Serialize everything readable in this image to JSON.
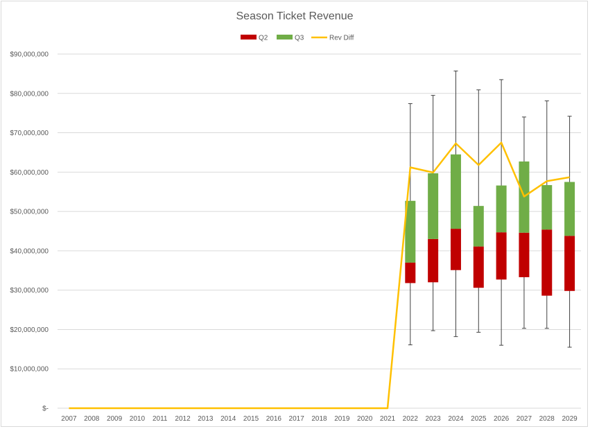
{
  "chart_data": {
    "type": "bar",
    "subtype": "stacked box plot (Q1 transparent base, Q2/Q3 stacked boxes, whiskers, line overlay)",
    "title": "Season Ticket Revenue",
    "xlabel": "",
    "ylabel": "",
    "ylim": [
      0,
      90000000
    ],
    "yticks": [
      0,
      10000000,
      20000000,
      30000000,
      40000000,
      50000000,
      60000000,
      70000000,
      80000000,
      90000000
    ],
    "ytick_labels": [
      "$-",
      "$10,000,000",
      "$20,000,000",
      "$30,000,000",
      "$40,000,000",
      "$50,000,000",
      "$60,000,000",
      "$70,000,000",
      "$80,000,000",
      "$90,000,000"
    ],
    "grid": true,
    "legend_position": "top",
    "categories": [
      "2007",
      "2008",
      "2009",
      "2010",
      "2011",
      "2012",
      "2013",
      "2014",
      "2015",
      "2016",
      "2017",
      "2018",
      "2019",
      "2020",
      "2021",
      "2022",
      "2023",
      "2024",
      "2025",
      "2026",
      "2027",
      "2028",
      "2029"
    ],
    "series": [
      {
        "name": "Q2",
        "color": "#c00000",
        "values": [
          null,
          null,
          null,
          null,
          null,
          null,
          null,
          null,
          null,
          null,
          null,
          null,
          null,
          null,
          null,
          5200000,
          11000000,
          10500000,
          10500000,
          12000000,
          11300000,
          16800000,
          14000000
        ]
      },
      {
        "name": "Q3",
        "color": "#70ad47",
        "values": [
          null,
          null,
          null,
          null,
          null,
          null,
          null,
          null,
          null,
          null,
          null,
          null,
          null,
          null,
          null,
          15700000,
          16700000,
          18900000,
          10300000,
          11900000,
          18100000,
          11300000,
          13700000
        ]
      },
      {
        "name": "Rev Diff",
        "color": "#ffc000",
        "type": "line",
        "values": [
          0,
          0,
          0,
          0,
          0,
          0,
          0,
          0,
          0,
          0,
          0,
          0,
          0,
          0,
          0,
          61200000,
          59900000,
          67300000,
          61800000,
          67500000,
          53800000,
          57700000,
          58700000
        ]
      }
    ],
    "box_stats": {
      "q1": [
        null,
        null,
        null,
        null,
        null,
        null,
        null,
        null,
        null,
        null,
        null,
        null,
        null,
        null,
        null,
        31800000,
        32000000,
        35100000,
        30600000,
        32700000,
        33300000,
        28600000,
        29800000
      ],
      "min": [
        null,
        null,
        null,
        null,
        null,
        null,
        null,
        null,
        null,
        null,
        null,
        null,
        null,
        null,
        null,
        16100000,
        19700000,
        18200000,
        19300000,
        16000000,
        20300000,
        20300000,
        15500000
      ],
      "max": [
        null,
        null,
        null,
        null,
        null,
        null,
        null,
        null,
        null,
        null,
        null,
        null,
        null,
        null,
        null,
        77400000,
        79500000,
        85700000,
        80900000,
        83500000,
        74000000,
        78100000,
        74200000
      ]
    }
  }
}
